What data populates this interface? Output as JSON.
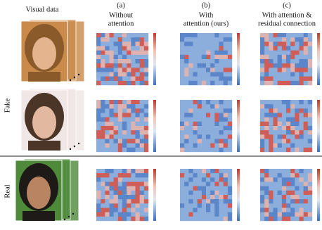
{
  "figure": {
    "visual_header": "Visual data",
    "columns": [
      {
        "letter": "(a)",
        "lines": [
          "Without",
          "attention"
        ]
      },
      {
        "letter": "(b)",
        "lines": [
          "With",
          "attention (ours)"
        ]
      },
      {
        "letter": "(c)",
        "lines": [
          "With attention &",
          "residual connection"
        ]
      }
    ],
    "row_labels": [
      "Fake",
      "Real"
    ]
  }
}
